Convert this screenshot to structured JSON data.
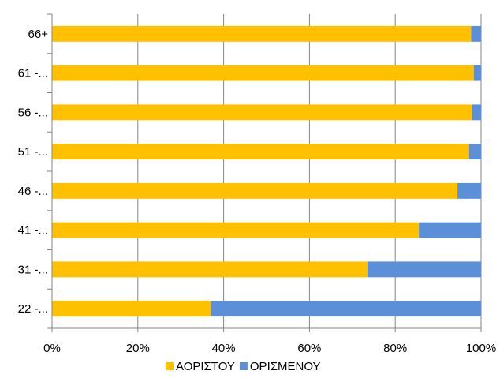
{
  "chart_data": {
    "type": "bar",
    "orientation": "horizontal",
    "stacked": "percent",
    "categories": [
      "22 -...",
      "31 -...",
      "41 -...",
      "46 -...",
      "51 -...",
      "56 -...",
      "61 -...",
      "66+"
    ],
    "series": [
      {
        "name": "ΑΟΡΙΣΤΟΥ",
        "color": "#FFC000",
        "values": [
          37,
          73.5,
          85.5,
          94.5,
          97.2,
          97.9,
          98.3,
          97.7
        ]
      },
      {
        "name": "ΟΡΙΣΜΕΝΟΥ",
        "color": "#5B8FD8",
        "values": [
          63,
          26.5,
          14.5,
          5.5,
          2.8,
          2.1,
          1.7,
          2.3
        ]
      }
    ],
    "x_ticks": [
      "0%",
      "20%",
      "40%",
      "60%",
      "80%",
      "100%"
    ],
    "xlim": [
      0,
      100
    ],
    "grid": true,
    "legend": "bottom",
    "title": "",
    "xlabel": "",
    "ylabel": ""
  }
}
